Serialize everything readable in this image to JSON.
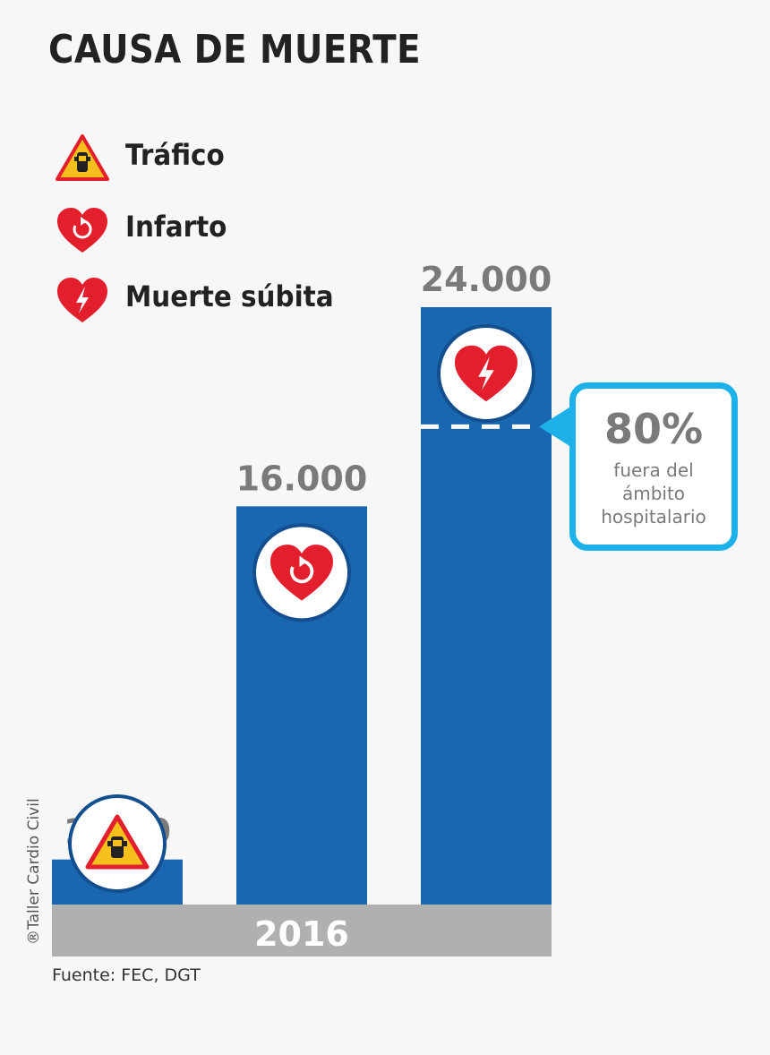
{
  "title": "CAUSA DE MUERTE",
  "legend": [
    {
      "label": "Tráfico",
      "icon": "warning-car-icon"
    },
    {
      "label": "Infarto",
      "icon": "heart-cycle-icon"
    },
    {
      "label": "Muerte súbita",
      "icon": "heart-bolt-icon"
    }
  ],
  "chart_data": {
    "type": "bar",
    "categories": [
      "Tráfico",
      "Infarto",
      "Muerte súbita"
    ],
    "values": [
      1810,
      16000,
      24000
    ],
    "value_labels": [
      "1.810",
      "16.000",
      "24.000"
    ],
    "xlabel": "2016",
    "ylim": [
      0,
      24000
    ],
    "grid": false,
    "legend_position": "top-left",
    "bar_color": "#1a67b1",
    "annotation": {
      "value": "80%",
      "text": "fuera del ámbito hospitalario",
      "fraction_of_bar": 0.8,
      "bar_index": 2,
      "color": "#1cb1e8"
    }
  },
  "colors": {
    "bar": "#1a67b1",
    "axis_band": "#b0b0b0",
    "callout_border": "#1cb1e8",
    "heart": "#e31e2d",
    "warning": "#f5c01c"
  },
  "credit": "®Taller Cardio Civil",
  "source": "Fuente: FEC, DGT"
}
